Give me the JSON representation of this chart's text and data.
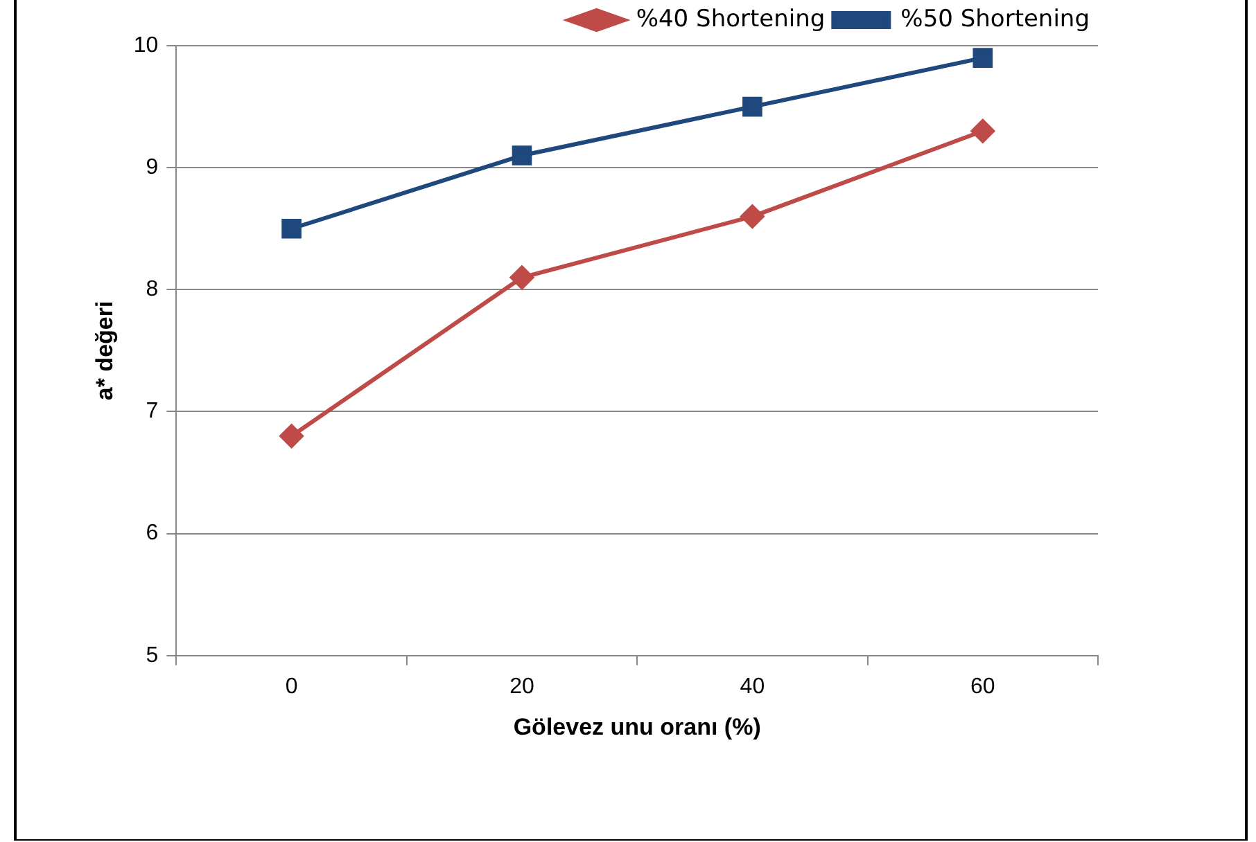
{
  "chart_data": {
    "type": "line",
    "xlabel": "Gölevez unu oranı (%)",
    "ylabel": "a* değeri",
    "categories": [
      "0",
      "20",
      "40",
      "60"
    ],
    "series": [
      {
        "name": "%40 Shortening",
        "color": "#be4b48",
        "marker": "diamond",
        "values": [
          6.8,
          8.1,
          8.6,
          9.3
        ]
      },
      {
        "name": "%50 Shortening",
        "color": "#1f497d",
        "marker": "square",
        "values": [
          8.5,
          9.1,
          9.5,
          9.9
        ]
      }
    ],
    "ylim": [
      5,
      10
    ],
    "yticks": [
      5,
      6,
      7,
      8,
      9,
      10
    ],
    "grid": "y",
    "legend": "top",
    "line_style": "solid"
  }
}
